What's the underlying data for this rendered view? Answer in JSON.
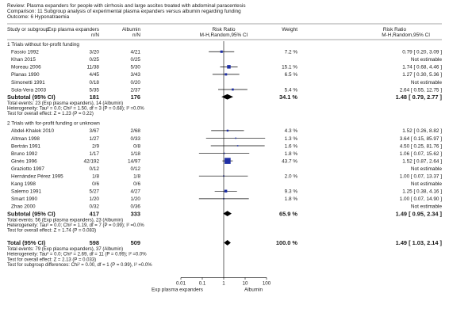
{
  "header": {
    "review": "Review:  Plasma expanders for people with cirrhosis and large ascites treated with abdominal paracentesis",
    "comparison": "Comparison:  11 Subgroup analysis of experimental plasma expanders versus albumin regarding funding",
    "outcome": "Outcome:  6 Hyponatraemia"
  },
  "columns": {
    "study": "Study or subgroup",
    "exp": "Exp plasma expanders",
    "ctrl": "Albumin",
    "exp_sub": "n/N",
    "ctrl_sub": "n/N",
    "rr": "Risk Ratio",
    "rr_sub": "M-H,Random,95% CI",
    "weight": "Weight",
    "rr2": "Risk Ratio",
    "rr2_sub": "M-H,Random,95% CI"
  },
  "chart_data": {
    "type": "forest",
    "x_scale": "log",
    "xlim": [
      0.01,
      100
    ],
    "ticks": [
      "0.01",
      "0.1",
      "1",
      "10",
      "100"
    ],
    "tick_values": [
      0.01,
      0.1,
      1,
      10,
      100
    ],
    "xlabel_left": "Exp plasma expanders",
    "xlabel_right": "Albumin",
    "groups": [
      {
        "title": "1 Trials without for-profit funding",
        "studies": [
          {
            "name": "Fassio 1992",
            "exp": "3/20",
            "ctrl": "4/21",
            "weight": "7.2 %",
            "ci_text": "0.79 [ 0.20, 3.09 ]",
            "rr": 0.79,
            "lo": 0.2,
            "hi": 3.09,
            "w": 7.2
          },
          {
            "name": "Khan 2015",
            "exp": "0/25",
            "ctrl": "0/25",
            "weight": "",
            "ci_text": "Not estimable",
            "rr": null,
            "lo": null,
            "hi": null,
            "w": 0
          },
          {
            "name": "Moreau 2006",
            "exp": "11/38",
            "ctrl": "5/30",
            "weight": "15.1 %",
            "ci_text": "1.74 [ 0.68, 4.46 ]",
            "rr": 1.74,
            "lo": 0.68,
            "hi": 4.46,
            "w": 15.1
          },
          {
            "name": "Planas 1990",
            "exp": "4/45",
            "ctrl": "3/43",
            "weight": "6.5 %",
            "ci_text": "1.27 [ 0.30, 5.36 ]",
            "rr": 1.27,
            "lo": 0.3,
            "hi": 5.36,
            "w": 6.5
          },
          {
            "name": "Simonetti 1991",
            "exp": "0/18",
            "ctrl": "0/20",
            "weight": "",
            "ci_text": "Not estimable",
            "rr": null,
            "lo": null,
            "hi": null,
            "w": 0
          },
          {
            "name": "Sola-Vera 2003",
            "exp": "5/35",
            "ctrl": "2/37",
            "weight": "5.4 %",
            "ci_text": "2.64 [ 0.55, 12.75 ]",
            "rr": 2.64,
            "lo": 0.55,
            "hi": 12.75,
            "w": 5.4
          }
        ],
        "subtotal": {
          "label": "Subtotal (95% CI)",
          "exp": "181",
          "ctrl": "176",
          "weight": "34.1 %",
          "ci_text": "1.48 [ 0.79, 2.77 ]",
          "rr": 1.48,
          "lo": 0.79,
          "hi": 2.77
        },
        "notes": [
          "Total events: 23 (Exp plasma expanders), 14 (Albumin)",
          "Heterogeneity: Tau² = 0.0; Chi² = 1.50, df = 3 (P = 0.68); I² =0.0%",
          "Test for overall effect: Z = 1.23 (P = 0.22)"
        ]
      },
      {
        "title": "2 Trials with for-profit funding or unknown",
        "studies": [
          {
            "name": "Abdel-Khalek 2010",
            "exp": "3/67",
            "ctrl": "2/68",
            "weight": "4.3 %",
            "ci_text": "1.52 [ 0.26, 8.82 ]",
            "rr": 1.52,
            "lo": 0.26,
            "hi": 8.82,
            "w": 4.3
          },
          {
            "name": "Altman 1998",
            "exp": "1/27",
            "ctrl": "0/33",
            "weight": "1.3 %",
            "ci_text": "3.64 [ 0.15, 85.97 ]",
            "rr": 3.64,
            "lo": 0.15,
            "hi": 85.97,
            "w": 1.3
          },
          {
            "name": "Bertrán 1991",
            "exp": "2/9",
            "ctrl": "0/8",
            "weight": "1.6 %",
            "ci_text": "4.50 [ 0.25, 81.76 ]",
            "rr": 4.5,
            "lo": 0.25,
            "hi": 81.76,
            "w": 1.6
          },
          {
            "name": "Bruno 1992",
            "exp": "1/17",
            "ctrl": "1/18",
            "weight": "1.8 %",
            "ci_text": "1.06 [ 0.07, 15.62 ]",
            "rr": 1.06,
            "lo": 0.07,
            "hi": 15.62,
            "w": 1.8
          },
          {
            "name": "Ginès 1996",
            "exp": "42/192",
            "ctrl": "14/97",
            "weight": "43.7 %",
            "ci_text": "1.52 [ 0.87, 2.64 ]",
            "rr": 1.52,
            "lo": 0.87,
            "hi": 2.64,
            "w": 43.7
          },
          {
            "name": "Graziotto 1997",
            "exp": "0/12",
            "ctrl": "0/12",
            "weight": "",
            "ci_text": "Not estimable",
            "rr": null,
            "lo": null,
            "hi": null,
            "w": 0
          },
          {
            "name": "Hernández Pérez 1995",
            "exp": "1/8",
            "ctrl": "1/8",
            "weight": "2.0 %",
            "ci_text": "1.00 [ 0.07, 13.37 ]",
            "rr": 1.0,
            "lo": 0.07,
            "hi": 13.37,
            "w": 2.0
          },
          {
            "name": "Kang 1998",
            "exp": "0/6",
            "ctrl": "0/6",
            "weight": "",
            "ci_text": "Not estimable",
            "rr": null,
            "lo": null,
            "hi": null,
            "w": 0
          },
          {
            "name": "Salerno 1991",
            "exp": "5/27",
            "ctrl": "4/27",
            "weight": "9.3 %",
            "ci_text": "1.25 [ 0.38, 4.16 ]",
            "rr": 1.25,
            "lo": 0.38,
            "hi": 4.16,
            "w": 9.3
          },
          {
            "name": "Smart 1990",
            "exp": "1/20",
            "ctrl": "1/20",
            "weight": "1.8 %",
            "ci_text": "1.00 [ 0.07, 14.90 ]",
            "rr": 1.0,
            "lo": 0.07,
            "hi": 14.9,
            "w": 1.8
          },
          {
            "name": "Zhao 2000",
            "exp": "0/32",
            "ctrl": "0/36",
            "weight": "",
            "ci_text": "Not estimable",
            "rr": null,
            "lo": null,
            "hi": null,
            "w": 0
          }
        ],
        "subtotal": {
          "label": "Subtotal (95% CI)",
          "exp": "417",
          "ctrl": "333",
          "weight": "65.9 %",
          "ci_text": "1.49 [ 0.95, 2.34 ]",
          "rr": 1.49,
          "lo": 0.95,
          "hi": 2.34
        },
        "notes": [
          "Total events: 56 (Exp plasma expanders), 23 (Albumin)",
          "Heterogeneity: Tau² = 0.0; Chi² = 1.19, df = 7 (P = 0.99); I² =0.0%",
          "Test for overall effect: Z = 1.74 (P = 0.083)"
        ]
      }
    ],
    "total": {
      "label": "Total (95% CI)",
      "exp": "598",
      "ctrl": "509",
      "weight": "100.0 %",
      "ci_text": "1.49 [ 1.03, 2.14 ]",
      "rr": 1.49,
      "lo": 1.03,
      "hi": 2.14
    },
    "total_notes": [
      "Total events: 79 (Exp plasma expanders), 37 (Albumin)",
      "Heterogeneity: Tau² = 0.0; Chi² = 2.69, df = 11 (P = 0.99); I² =0.0%",
      "Test for overall effect: Z = 2.13 (P = 0.033)",
      "Test for subgroup differences: Chi² = 0.00, df = 1 (P = 0.99), I² =0.0%"
    ]
  },
  "colors": {
    "square": "#1f2fa5",
    "diamond": "#000000",
    "line": "#000000",
    "text": "#1a1a1a",
    "rule": "#888888"
  }
}
